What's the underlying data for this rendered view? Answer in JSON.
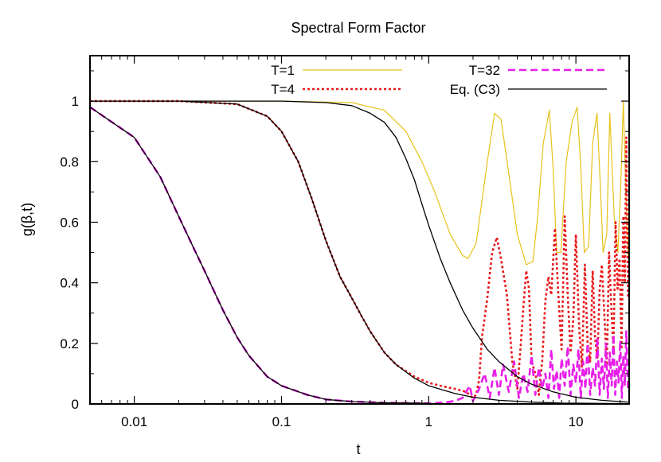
{
  "chart_data": {
    "type": "line",
    "title": "Spectral Form Factor",
    "xlabel": "t",
    "ylabel": "g(β,t)",
    "x_scale": "log",
    "xlim": [
      0.005,
      23
    ],
    "ylim": [
      0,
      1.15
    ],
    "x_ticks": [
      {
        "value": 0.01,
        "label": "0.01"
      },
      {
        "value": 0.1,
        "label": "0.1"
      },
      {
        "value": 1,
        "label": "1"
      },
      {
        "value": 10,
        "label": "10"
      }
    ],
    "y_ticks": [
      {
        "value": 0,
        "label": "0"
      },
      {
        "value": 0.2,
        "label": "0.2"
      },
      {
        "value": 0.4,
        "label": "0.4"
      },
      {
        "value": 0.6,
        "label": "0.6"
      },
      {
        "value": 0.8,
        "label": "0.8"
      },
      {
        "value": 1,
        "label": "1"
      }
    ],
    "grid": false,
    "legend_position": "top",
    "series": [
      {
        "name": "T=1",
        "color": "#e8c21a",
        "style": "solid",
        "x": [
          0.005,
          0.1,
          0.3,
          0.5,
          0.7,
          0.9,
          1.1,
          1.4,
          1.7,
          1.85,
          2.1,
          2.5,
          2.8,
          3.1,
          3.5,
          4.0,
          4.6,
          5.1,
          5.5,
          6.0,
          6.6,
          7.0,
          7.4,
          7.9,
          8.6,
          9.4,
          10.2,
          10.8,
          11.4,
          12.2,
          13.0,
          13.9,
          14.6,
          15.3,
          16.2,
          17.0,
          18.2,
          19.3,
          20.2,
          21.0,
          21.8,
          22.6
        ],
        "y": [
          1.0,
          1.0,
          0.995,
          0.97,
          0.9,
          0.8,
          0.7,
          0.56,
          0.49,
          0.48,
          0.53,
          0.8,
          0.96,
          0.94,
          0.76,
          0.56,
          0.46,
          0.47,
          0.62,
          0.86,
          0.97,
          0.78,
          0.5,
          0.5,
          0.8,
          0.93,
          0.98,
          0.78,
          0.5,
          0.52,
          0.86,
          0.96,
          0.74,
          0.5,
          0.56,
          0.96,
          0.62,
          0.5,
          0.73,
          1.0,
          0.72,
          0.48
        ]
      },
      {
        "name": "T=4",
        "color": "#e8191b",
        "style": "dotted",
        "x": [
          0.005,
          0.02,
          0.05,
          0.08,
          0.1,
          0.13,
          0.16,
          0.2,
          0.25,
          0.3,
          0.35,
          0.4,
          0.5,
          0.6,
          0.8,
          1.0,
          1.2,
          1.5,
          1.8,
          2.0,
          2.1,
          2.2,
          2.3,
          2.5,
          2.7,
          2.9,
          3.1,
          3.4,
          3.7,
          4.0,
          4.2,
          4.4,
          4.6,
          4.8,
          5.0,
          5.3,
          5.6,
          5.9,
          6.2,
          6.5,
          6.8,
          7.2,
          7.6,
          8.0,
          8.4,
          8.8,
          9.2,
          9.6,
          10.0,
          10.5,
          11.0,
          11.5,
          12.0,
          12.5,
          13.0,
          13.5,
          14.0,
          14.5,
          15.0,
          15.6,
          16.2,
          16.8,
          17.4,
          18.0,
          18.6,
          19.2,
          19.8,
          20.4,
          21.0,
          21.5,
          22.0,
          22.6
        ],
        "y": [
          1.0,
          1.0,
          0.99,
          0.95,
          0.9,
          0.8,
          0.68,
          0.54,
          0.42,
          0.35,
          0.29,
          0.24,
          0.17,
          0.13,
          0.09,
          0.07,
          0.06,
          0.05,
          0.04,
          0.02,
          0.03,
          0.08,
          0.22,
          0.35,
          0.5,
          0.55,
          0.48,
          0.36,
          0.14,
          0.05,
          0.18,
          0.32,
          0.44,
          0.38,
          0.14,
          0.1,
          0.03,
          0.14,
          0.34,
          0.42,
          0.36,
          0.58,
          0.36,
          0.18,
          0.62,
          0.36,
          0.17,
          0.28,
          0.56,
          0.26,
          0.12,
          0.46,
          0.2,
          0.14,
          0.44,
          0.22,
          0.15,
          0.38,
          0.46,
          0.3,
          0.12,
          0.5,
          0.32,
          0.18,
          0.6,
          0.38,
          0.48,
          0.18,
          0.62,
          0.4,
          0.88,
          0.35
        ]
      },
      {
        "name": "T=32",
        "color": "#e81ee8",
        "style": "dashed",
        "x": [
          0.005,
          0.01,
          0.015,
          0.02,
          0.025,
          0.03,
          0.035,
          0.04,
          0.05,
          0.06,
          0.08,
          0.1,
          0.15,
          0.2,
          0.3,
          0.5,
          1.0,
          1.3,
          1.5,
          1.7,
          1.9,
          2.0,
          2.1,
          2.2,
          2.4,
          2.6,
          2.8,
          3.0,
          3.2,
          3.5,
          3.8,
          4.1,
          4.4,
          4.7,
          5.0,
          5.3,
          5.6,
          5.9,
          6.2,
          6.5,
          6.8,
          7.1,
          7.4,
          7.7,
          8.0,
          8.4,
          8.8,
          9.2,
          9.6,
          10.0,
          10.4,
          10.8,
          11.2,
          11.6,
          12.0,
          12.5,
          13.0,
          13.5,
          14.0,
          14.5,
          15.0,
          15.5,
          16.0,
          16.5,
          17.0,
          17.5,
          18.0,
          18.5,
          19.0,
          19.5,
          20.0,
          20.5,
          21.0,
          21.5,
          22.0,
          22.6
        ],
        "y": [
          0.98,
          0.88,
          0.75,
          0.62,
          0.52,
          0.44,
          0.37,
          0.31,
          0.22,
          0.16,
          0.09,
          0.06,
          0.03,
          0.015,
          0.008,
          0.004,
          0.002,
          0.005,
          0.01,
          0.02,
          0.06,
          0.01,
          0.03,
          0.05,
          0.1,
          0.02,
          0.12,
          0.03,
          0.13,
          0.04,
          0.14,
          0.02,
          0.1,
          0.04,
          0.16,
          0.03,
          0.12,
          0.05,
          0.1,
          0.02,
          0.18,
          0.05,
          0.11,
          0.02,
          0.15,
          0.06,
          0.19,
          0.03,
          0.13,
          0.07,
          0.18,
          0.02,
          0.14,
          0.05,
          0.2,
          0.03,
          0.12,
          0.06,
          0.22,
          0.03,
          0.15,
          0.05,
          0.2,
          0.02,
          0.17,
          0.06,
          0.23,
          0.03,
          0.14,
          0.07,
          0.21,
          0.02,
          0.16,
          0.06,
          0.24,
          0.04
        ]
      },
      {
        "name": "Eq. (C3)",
        "color": "#000000",
        "style": "solid",
        "curves": [
          {
            "x": [
              0.005,
              0.01,
              0.015,
              0.02,
              0.025,
              0.03,
              0.035,
              0.04,
              0.05,
              0.06,
              0.08,
              0.1,
              0.15,
              0.2,
              0.3,
              0.5,
              1.0
            ],
            "y": [
              0.98,
              0.88,
              0.75,
              0.62,
              0.52,
              0.44,
              0.37,
              0.31,
              0.22,
              0.16,
              0.09,
              0.06,
              0.03,
              0.015,
              0.008,
              0.004,
              0.002
            ]
          },
          {
            "x": [
              0.005,
              0.02,
              0.05,
              0.08,
              0.1,
              0.13,
              0.16,
              0.2,
              0.25,
              0.3,
              0.35,
              0.4,
              0.5,
              0.6,
              0.8,
              1.0,
              1.5,
              2.0,
              3.0,
              5.0,
              8.0,
              12.0,
              22.6
            ],
            "y": [
              1.0,
              1.0,
              0.99,
              0.95,
              0.9,
              0.8,
              0.68,
              0.54,
              0.42,
              0.35,
              0.29,
              0.24,
              0.17,
              0.13,
              0.085,
              0.06,
              0.035,
              0.022,
              0.012,
              0.006,
              0.003,
              0.002,
              0.001
            ]
          },
          {
            "x": [
              0.005,
              0.1,
              0.2,
              0.3,
              0.4,
              0.5,
              0.6,
              0.7,
              0.8,
              0.9,
              1.0,
              1.2,
              1.4,
              1.7,
              2.0,
              2.5,
              3.0,
              4.0,
              5.0,
              7.0,
              10.0,
              15.0,
              22.6
            ],
            "y": [
              1.0,
              1.0,
              0.995,
              0.985,
              0.96,
              0.93,
              0.88,
              0.81,
              0.74,
              0.66,
              0.59,
              0.48,
              0.4,
              0.31,
              0.25,
              0.18,
              0.14,
              0.09,
              0.065,
              0.04,
              0.022,
              0.012,
              0.006
            ]
          }
        ]
      }
    ]
  }
}
